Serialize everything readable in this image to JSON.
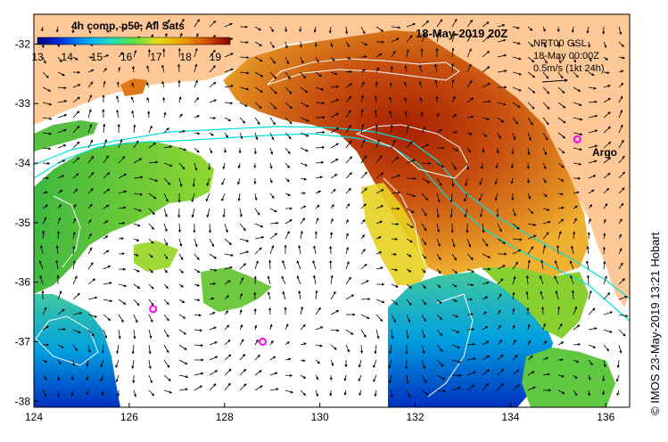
{
  "title": "18-May-2019 20Z",
  "colorbar": {
    "label": "4h comp, p50, All Sats",
    "ticks": [
      "13",
      "14",
      "15",
      "16",
      "17",
      "18",
      "19"
    ]
  },
  "current_info": {
    "line1": "NRT00 GSL",
    "line2": "18-May 00:00Z",
    "line3": "0.5m/s (1kt 24h)"
  },
  "argo_label": "Argo",
  "credit": "© IMOS 23-May-2019 13:21 Hobart",
  "axes": {
    "x_ticks": [
      "124",
      "126",
      "128",
      "130",
      "132",
      "134",
      "136"
    ],
    "y_ticks": [
      "-32",
      "-33",
      "-34",
      "-35",
      "-36",
      "-37",
      "-38"
    ]
  },
  "argo_floats": [
    {
      "lon": 135.4,
      "lat": -33.6
    },
    {
      "lon": 126.5,
      "lat": -36.45
    },
    {
      "lon": 128.8,
      "lat": -37.0
    }
  ],
  "colors": {
    "land": "#ffc896",
    "no_data": "#ffffff",
    "argo_marker": "#ff00ff",
    "contour": "#ffffff",
    "isobath": "#00e0e0"
  }
}
